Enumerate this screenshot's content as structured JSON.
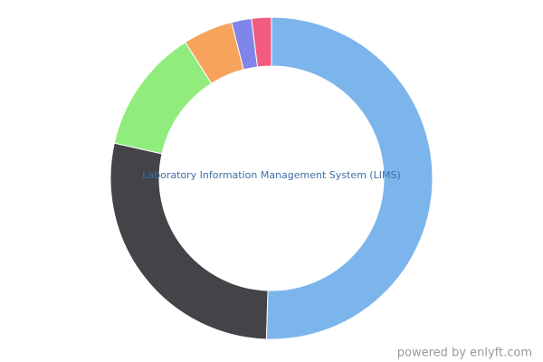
{
  "chart_data": {
    "type": "donut",
    "center_label": "Laboratory Information Management System (LIMS)",
    "values": [
      50.5,
      28,
      12.5,
      5,
      2,
      2
    ],
    "colors": [
      "#7cb5ec",
      "#434348",
      "#90ed7d",
      "#f7a35c",
      "#8085e9",
      "#f15c80"
    ]
  },
  "footer": "powered by enlyft.com"
}
